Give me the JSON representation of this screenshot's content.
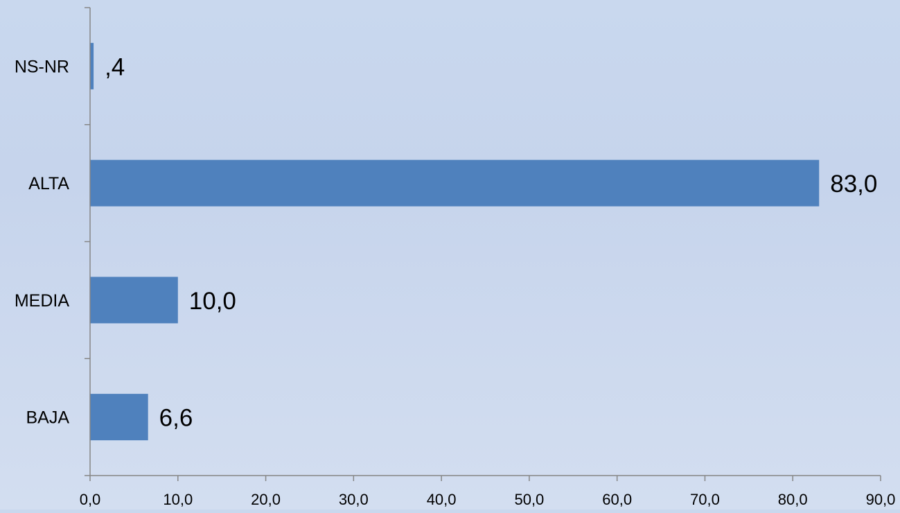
{
  "chart_data": {
    "type": "bar",
    "orientation": "horizontal",
    "title": "",
    "xlabel": "",
    "ylabel": "",
    "categories": [
      "NS-NR",
      "ALTA",
      "MEDIA",
      "BAJA"
    ],
    "values": [
      0.4,
      83.0,
      10.0,
      6.6
    ],
    "data_labels": [
      ",4",
      "83,0",
      "10,0",
      "6,6"
    ],
    "xlim": [
      0,
      90
    ],
    "x_ticks": [
      0,
      10,
      20,
      30,
      40,
      50,
      60,
      70,
      80,
      90
    ],
    "x_tick_labels": [
      "0,0",
      "10,0",
      "20,0",
      "30,0",
      "40,0",
      "50,0",
      "60,0",
      "70,0",
      "80,0",
      "90,0"
    ],
    "grid": false,
    "legend": "none",
    "colors": {
      "bar": "#4f81bd",
      "axis": "#868686",
      "text": "#000000"
    }
  }
}
